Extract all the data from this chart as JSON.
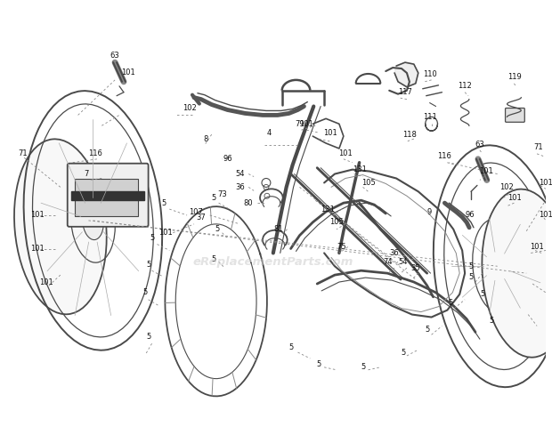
{
  "bg_color": "#ffffff",
  "line_color": "#4a4a4a",
  "dash_color": "#888888",
  "label_color": "#111111",
  "watermark": "eReplacementParts.com",
  "watermark_color": "#cccccc",
  "figsize": [
    6.2,
    4.8
  ],
  "dpi": 100,
  "label_fs": 6.0
}
